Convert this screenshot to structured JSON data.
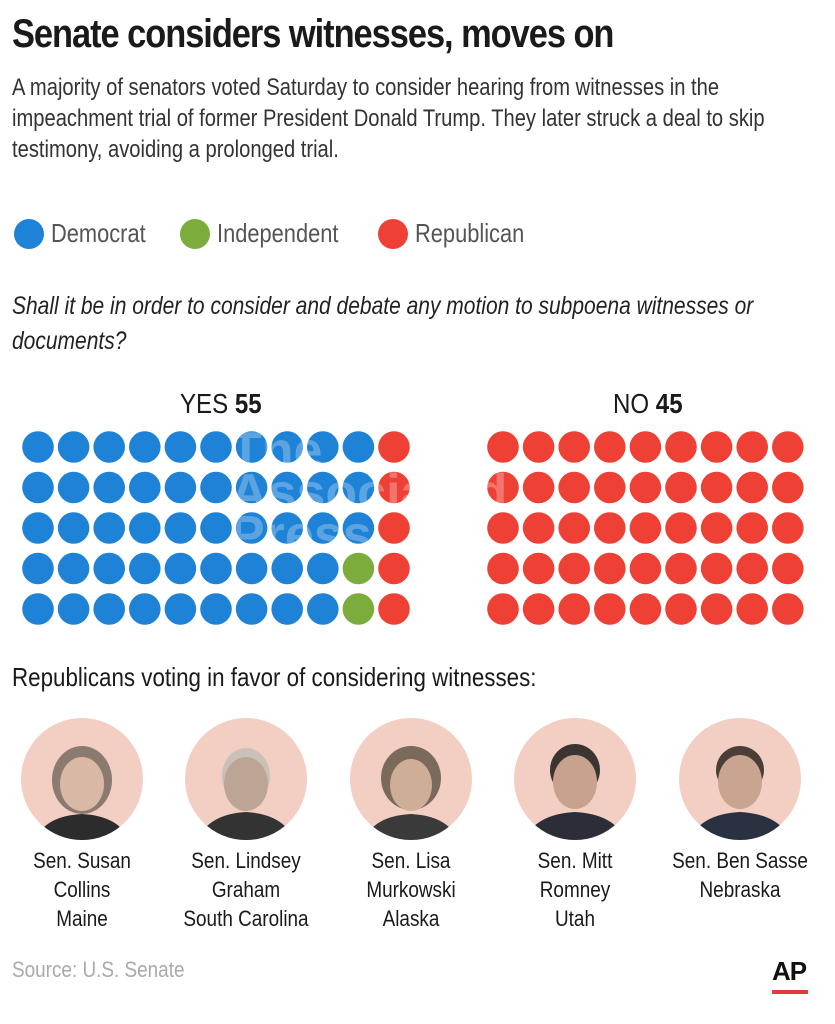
{
  "header": {
    "title": "Senate considers witnesses, moves on",
    "subtitle": "A majority of senators voted Saturday to consider hearing from witnesses in the impeachment trial of former President Donald Trump. They later struck a deal to skip testimony, avoiding a prolonged trial."
  },
  "legend": [
    {
      "label": "Democrat",
      "color": "#1e82d6"
    },
    {
      "label": "Independent",
      "color": "#7cac3c"
    },
    {
      "label": "Republican",
      "color": "#ee4035"
    }
  ],
  "question": "Shall it be in order to consider and debate any motion to subpoena witnesses or documents?",
  "chart_data": {
    "type": "dot-matrix",
    "title": "Shall it be in order to consider and debate any motion to subpoena witnesses or documents?",
    "categories": [
      "YES",
      "NO"
    ],
    "series": [
      {
        "name": "Democrat",
        "values": [
          48,
          0
        ],
        "color": "#1e82d6"
      },
      {
        "name": "Independent",
        "values": [
          2,
          0
        ],
        "color": "#7cac3c"
      },
      {
        "name": "Republican",
        "values": [
          5,
          45
        ],
        "color": "#ee4035"
      }
    ],
    "totals": [
      55,
      45
    ],
    "groups": [
      {
        "label": "YES",
        "total": "55"
      },
      {
        "label": "NO",
        "total": "45"
      }
    ]
  },
  "senators_heading": "Republicans voting in favor of considering witnesses:",
  "senators": [
    {
      "name": "Sen. Susan\nCollins\nMaine"
    },
    {
      "name": "Sen. Lindsey\nGraham\nSouth Carolina"
    },
    {
      "name": "Sen. Lisa\nMurkowski\nAlaska"
    },
    {
      "name": "Sen. Mitt Romney\nUtah"
    },
    {
      "name": "Sen. Ben Sasse\nNebraska"
    }
  ],
  "footer": {
    "source": "Source: U.S. Senate",
    "logo": "AP"
  },
  "watermark": "The\nAssociated\nPress"
}
